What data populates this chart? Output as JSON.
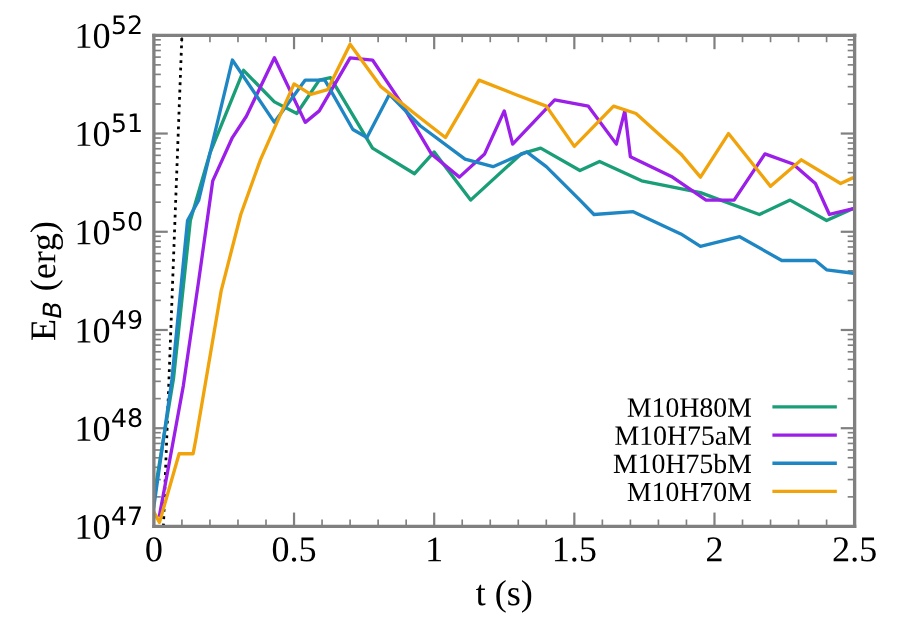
{
  "chart_data": {
    "type": "line",
    "xlabel": "t (s)",
    "ylabel": "E$_{B}$ (erg)",
    "log": "y",
    "legend": "bottom right",
    "grid": false,
    "xlim": [
      0,
      2.5
    ],
    "xticks": [
      0,
      0.5,
      1,
      1.5,
      2,
      2.5
    ],
    "ylim": [
      1e+47,
      1e+52
    ],
    "yticks": [
      {
        "value": 1e+47,
        "label": "10$^{47}$"
      },
      {
        "value": 1e+48,
        "label": "10$^{48}$"
      },
      {
        "value": 1e+49,
        "label": "10$^{49}$"
      },
      {
        "value": 1e+50,
        "label": "10$^{50}$"
      },
      {
        "value": 1e+51,
        "label": "10$^{51}$"
      },
      {
        "value": 1e+52,
        "label": "10$^{52}$"
      }
    ],
    "series": [
      {
        "color": "#000000",
        "line_style": "dotted",
        "x": [
          0.034,
          0.1
        ],
        "values": [
          1e+47,
          1e+52
        ]
      },
      {
        "name": "M10H80M",
        "color": "#1a9e77",
        "x": [
          0,
          0.07,
          0.13,
          0.2,
          0.32,
          0.43,
          0.51,
          0.59,
          0.63,
          0.78,
          0.93,
          1.0,
          1.13,
          1.31,
          1.38,
          1.52,
          1.59,
          1.74,
          1.95,
          2.16,
          2.27,
          2.4,
          2.49
        ],
        "values": [
          2e+47,
          3.2e+48,
          1.3e+50,
          6.3e+50,
          4.4e+51,
          2.1e+51,
          1.6e+51,
          3.5e+51,
          3.7e+51,
          7.1e+50,
          3.9e+50,
          6.5e+50,
          2.1e+50,
          6.2e+50,
          7.1e+50,
          4.2e+50,
          5.2e+50,
          3.3e+50,
          2.5e+50,
          1.5e+50,
          2.1e+50,
          1.3e+50,
          1.7e+50
        ]
      },
      {
        "name": "M10H75aM",
        "color": "#9b1fe8",
        "x": [
          0.02,
          0.057,
          0.105,
          0.16,
          0.21,
          0.28,
          0.33,
          0.43,
          0.54,
          0.59,
          0.7,
          0.78,
          0.88,
          0.99,
          1.09,
          1.18,
          1.25,
          1.28,
          1.43,
          1.55,
          1.65,
          1.68,
          1.7,
          1.85,
          1.97,
          2.07,
          2.18,
          2.28,
          2.36,
          2.41,
          2.49
        ],
        "values": [
          1.3e+47,
          4.8e+47,
          2.7e+48,
          3.2e+49,
          3.3e+50,
          9.1e+50,
          1.5e+51,
          5.9e+51,
          1.3e+51,
          1.7e+51,
          5.9e+51,
          5.6e+51,
          2.1e+51,
          6.2e+50,
          3.6e+50,
          6.2e+50,
          1.7e+51,
          7.8e+50,
          2.2e+51,
          1.9e+51,
          7.8e+50,
          1.7e+51,
          5.8e+50,
          3.6e+50,
          2.1e+50,
          2.1e+50,
          6.2e+50,
          4.9e+50,
          3.1e+50,
          1.5e+50,
          1.7e+50
        ]
      },
      {
        "name": "M10H75bM",
        "color": "#1f86c4",
        "x": [
          0,
          0.064,
          0.12,
          0.16,
          0.28,
          0.43,
          0.54,
          0.61,
          0.71,
          0.76,
          0.84,
          0.95,
          1.11,
          1.21,
          1.33,
          1.4,
          1.52,
          1.57,
          1.71,
          1.88,
          1.95,
          2.09,
          2.24,
          2.36,
          2.4,
          2.49
        ],
        "values": [
          1.6e+47,
          3.1e+48,
          1.3e+50,
          2.1e+50,
          5.6e+51,
          1.3e+51,
          3.5e+51,
          3.5e+51,
          1.1e+51,
          9.1e+50,
          2.5e+51,
          1.2e+51,
          5.5e+50,
          4.6e+50,
          6.5e+50,
          4.6e+50,
          2.1e+50,
          1.5e+50,
          1.6e+50,
          9.5e+49,
          7.1e+49,
          8.9e+49,
          5.1e+49,
          5.1e+49,
          4.1e+49,
          3.8e+49
        ]
      },
      {
        "name": "M10H70M",
        "color": "#f0a30a",
        "x": [
          0,
          0.02,
          0.09,
          0.14,
          0.15,
          0.24,
          0.31,
          0.38,
          0.5,
          0.56,
          0.62,
          0.7,
          0.81,
          0.93,
          1.04,
          1.16,
          1.29,
          1.4,
          1.5,
          1.64,
          1.72,
          1.88,
          1.95,
          2.05,
          2.2,
          2.31,
          2.45,
          2.49
        ],
        "values": [
          1.4e+47,
          1.1e+47,
          5.5e+47,
          5.5e+47,
          7.8e+47,
          2.5e+49,
          1.5e+50,
          5.4e+50,
          3.2e+51,
          2.5e+51,
          2.8e+51,
          8.1e+51,
          3e+51,
          1.6e+51,
          9.1e+50,
          3.5e+51,
          2.5e+51,
          1.9e+51,
          7.4e+50,
          1.9e+51,
          1.6e+51,
          6.2e+50,
          3.6e+50,
          1e+51,
          2.9e+50,
          5.4e+50,
          3.1e+50,
          3.5e+50
        ]
      }
    ]
  }
}
